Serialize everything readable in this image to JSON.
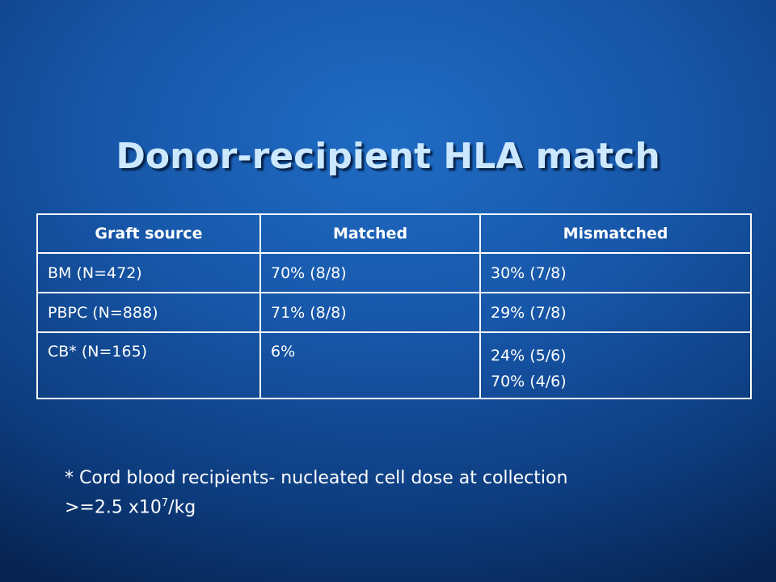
{
  "title": "Donor-recipient HLA match",
  "table": {
    "header": [
      "Graft source",
      "Matched",
      "Mismatched"
    ],
    "rows": [
      [
        "BM (N=472)",
        "70% (8/8)",
        "30% (7/8)"
      ],
      [
        "PBPC (N=888)",
        "71% (8/8)",
        "29% (7/8)"
      ],
      [
        "CB* (N=165)",
        "6%",
        [
          "24% (5/6)",
          "70% (4/6)"
        ]
      ]
    ]
  },
  "footnote": {
    "line1": "* Cord blood recipients- nucleated cell dose at collection",
    "line2": ">=2.5 x10",
    "superscript": "7",
    "suffix": "/kg"
  }
}
